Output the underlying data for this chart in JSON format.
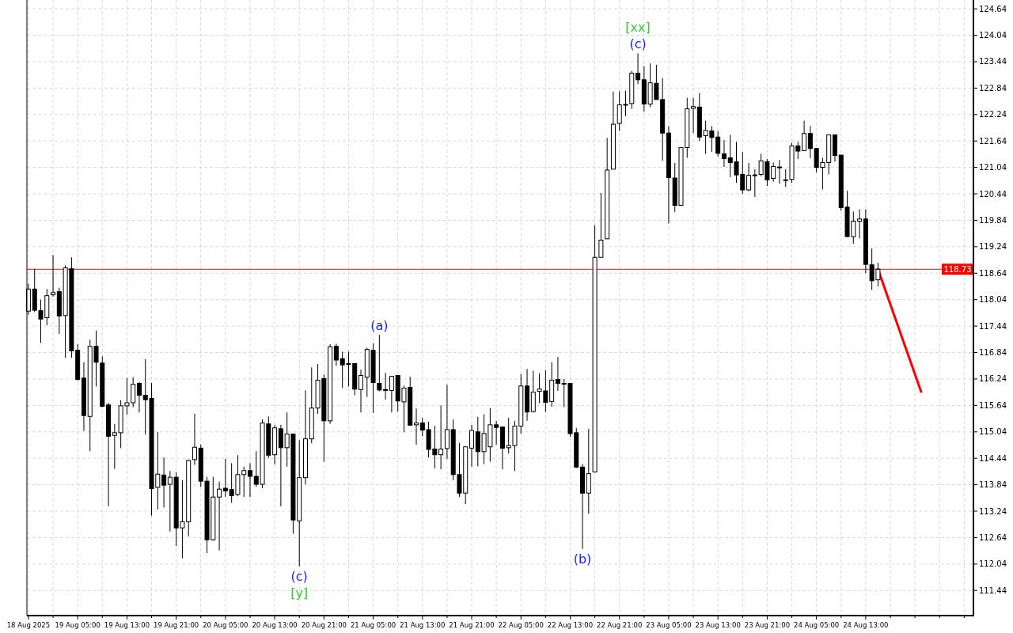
{
  "chart_data": {
    "type": "candlestick",
    "x": [
      "2025-08-18T21:00",
      "2025-08-18T22:00",
      "2025-08-18T23:00",
      "2025-08-19T00:00",
      "2025-08-19T01:00",
      "2025-08-19T02:00",
      "2025-08-19T03:00",
      "2025-08-19T04:00",
      "2025-08-19T05:00",
      "2025-08-19T06:00",
      "2025-08-19T07:00",
      "2025-08-19T08:00",
      "2025-08-19T09:00",
      "2025-08-19T10:00",
      "2025-08-19T11:00",
      "2025-08-19T12:00",
      "2025-08-19T13:00",
      "2025-08-19T14:00",
      "2025-08-19T15:00",
      "2025-08-19T16:00",
      "2025-08-19T17:00",
      "2025-08-19T18:00",
      "2025-08-19T19:00",
      "2025-08-19T20:00",
      "2025-08-19T21:00",
      "2025-08-19T22:00",
      "2025-08-19T23:00",
      "2025-08-20T00:00",
      "2025-08-20T01:00",
      "2025-08-20T02:00",
      "2025-08-20T03:00",
      "2025-08-20T04:00",
      "2025-08-20T05:00",
      "2025-08-20T06:00",
      "2025-08-20T07:00",
      "2025-08-20T08:00",
      "2025-08-20T09:00",
      "2025-08-20T10:00",
      "2025-08-20T11:00",
      "2025-08-20T12:00",
      "2025-08-20T13:00",
      "2025-08-20T14:00",
      "2025-08-20T15:00",
      "2025-08-20T16:00",
      "2025-08-20T17:00",
      "2025-08-20T18:00",
      "2025-08-20T19:00",
      "2025-08-20T20:00",
      "2025-08-20T21:00",
      "2025-08-20T22:00",
      "2025-08-20T23:00",
      "2025-08-21T00:00",
      "2025-08-21T01:00",
      "2025-08-21T02:00",
      "2025-08-21T03:00",
      "2025-08-21T04:00",
      "2025-08-21T05:00",
      "2025-08-21T06:00",
      "2025-08-21T07:00",
      "2025-08-21T08:00",
      "2025-08-21T09:00",
      "2025-08-21T10:00",
      "2025-08-21T11:00",
      "2025-08-21T12:00",
      "2025-08-21T13:00",
      "2025-08-21T14:00",
      "2025-08-21T15:00",
      "2025-08-21T16:00",
      "2025-08-21T17:00",
      "2025-08-21T18:00",
      "2025-08-21T19:00",
      "2025-08-21T20:00",
      "2025-08-21T21:00",
      "2025-08-21T22:00",
      "2025-08-21T23:00",
      "2025-08-22T00:00",
      "2025-08-22T01:00",
      "2025-08-22T02:00",
      "2025-08-22T03:00",
      "2025-08-22T04:00",
      "2025-08-22T05:00",
      "2025-08-22T06:00",
      "2025-08-22T07:00",
      "2025-08-22T08:00",
      "2025-08-22T09:00",
      "2025-08-22T10:00",
      "2025-08-22T11:00",
      "2025-08-22T12:00",
      "2025-08-22T13:00",
      "2025-08-22T14:00",
      "2025-08-22T15:00",
      "2025-08-22T16:00",
      "2025-08-22T17:00",
      "2025-08-22T18:00",
      "2025-08-22T19:00",
      "2025-08-22T20:00",
      "2025-08-22T21:00",
      "2025-08-22T22:00",
      "2025-08-22T23:00",
      "2025-08-23T00:00",
      "2025-08-23T01:00",
      "2025-08-23T02:00",
      "2025-08-23T03:00",
      "2025-08-23T04:00",
      "2025-08-23T05:00",
      "2025-08-23T06:00",
      "2025-08-23T07:00",
      "2025-08-23T08:00",
      "2025-08-23T09:00",
      "2025-08-23T10:00",
      "2025-08-23T11:00",
      "2025-08-23T12:00",
      "2025-08-23T13:00",
      "2025-08-23T14:00",
      "2025-08-23T15:00",
      "2025-08-23T16:00",
      "2025-08-23T17:00",
      "2025-08-23T18:00",
      "2025-08-23T19:00",
      "2025-08-23T20:00",
      "2025-08-23T21:00",
      "2025-08-23T22:00",
      "2025-08-23T23:00",
      "2025-08-24T00:00",
      "2025-08-24T01:00",
      "2025-08-24T02:00",
      "2025-08-24T03:00",
      "2025-08-24T04:00",
      "2025-08-24T05:00",
      "2025-08-24T06:00",
      "2025-08-24T07:00",
      "2025-08-24T08:00",
      "2025-08-24T09:00",
      "2025-08-24T10:00",
      "2025-08-24T11:00",
      "2025-08-24T12:00",
      "2025-08-24T13:00",
      "2025-08-24T14:00",
      "2025-08-24T15:00"
    ],
    "ohlc": [
      [
        117.78,
        118.4,
        117.7,
        118.28
      ],
      [
        118.28,
        118.74,
        117.76,
        117.8
      ],
      [
        117.79,
        118.04,
        117.06,
        117.6
      ],
      [
        117.63,
        118.28,
        117.46,
        118.13
      ],
      [
        118.15,
        119.05,
        118.11,
        118.2
      ],
      [
        118.22,
        118.31,
        117.26,
        117.67
      ],
      [
        117.68,
        118.82,
        116.72,
        118.76
      ],
      [
        118.74,
        119.0,
        116.72,
        116.88
      ],
      [
        116.89,
        117.03,
        116.2,
        116.23
      ],
      [
        116.26,
        116.62,
        115.06,
        115.41
      ],
      [
        115.39,
        117.13,
        114.6,
        116.98
      ],
      [
        116.98,
        117.34,
        116.07,
        116.62
      ],
      [
        116.6,
        116.75,
        115.6,
        115.62
      ],
      [
        115.65,
        115.7,
        113.35,
        114.94
      ],
      [
        114.96,
        115.22,
        114.2,
        115.02
      ],
      [
        115.02,
        115.76,
        114.67,
        115.63
      ],
      [
        115.63,
        116.26,
        115.43,
        115.7
      ],
      [
        115.7,
        116.28,
        115.6,
        116.12
      ],
      [
        116.14,
        116.17,
        115.48,
        115.87
      ],
      [
        115.87,
        116.69,
        114.98,
        115.77
      ],
      [
        115.8,
        116.15,
        113.14,
        113.75
      ],
      [
        113.78,
        115.04,
        113.28,
        114.08
      ],
      [
        114.06,
        114.46,
        113.32,
        113.83
      ],
      [
        113.85,
        114.15,
        112.78,
        114.01
      ],
      [
        114.01,
        114.12,
        112.45,
        112.86
      ],
      [
        112.86,
        113.94,
        112.17,
        113.0
      ],
      [
        113.0,
        114.41,
        112.67,
        114.39
      ],
      [
        114.41,
        115.45,
        114.29,
        114.69
      ],
      [
        114.67,
        114.75,
        113.79,
        113.92
      ],
      [
        113.92,
        114.02,
        112.29,
        112.59
      ],
      [
        112.59,
        114.02,
        112.57,
        113.56
      ],
      [
        113.56,
        113.91,
        112.35,
        113.74
      ],
      [
        113.76,
        114.43,
        113.56,
        113.7
      ],
      [
        113.73,
        114.33,
        113.43,
        113.59
      ],
      [
        113.62,
        114.51,
        113.58,
        114.07
      ],
      [
        114.07,
        114.25,
        113.56,
        114.16
      ],
      [
        114.16,
        114.33,
        113.56,
        114.03
      ],
      [
        114.03,
        114.6,
        113.79,
        113.85
      ],
      [
        113.85,
        115.32,
        113.76,
        115.24
      ],
      [
        115.22,
        115.39,
        114.45,
        114.51
      ],
      [
        114.52,
        115.2,
        114.3,
        115.13
      ],
      [
        115.11,
        115.2,
        113.35,
        114.68
      ],
      [
        114.68,
        115.48,
        114.25,
        114.99
      ],
      [
        114.99,
        114.99,
        112.73,
        113.04
      ],
      [
        113.02,
        114.85,
        111.99,
        114.0
      ],
      [
        114.0,
        115.98,
        113.85,
        114.88
      ],
      [
        114.88,
        116.5,
        114.78,
        115.58
      ],
      [
        115.58,
        116.58,
        115.45,
        116.21
      ],
      [
        116.25,
        116.34,
        114.36,
        115.29
      ],
      [
        115.29,
        117.03,
        115.22,
        116.97
      ],
      [
        116.98,
        117.04,
        116.54,
        116.67
      ],
      [
        116.7,
        116.86,
        116.04,
        116.56
      ],
      [
        116.59,
        116.86,
        116.07,
        116.58
      ],
      [
        116.59,
        116.6,
        115.87,
        116.01
      ],
      [
        116.0,
        116.45,
        115.48,
        116.32
      ],
      [
        116.28,
        116.95,
        115.83,
        116.91
      ],
      [
        116.89,
        117.05,
        115.47,
        116.16
      ],
      [
        116.14,
        117.24,
        115.96,
        115.99
      ],
      [
        116.0,
        116.38,
        115.77,
        115.98
      ],
      [
        115.98,
        116.3,
        115.48,
        116.3
      ],
      [
        116.32,
        116.32,
        115.5,
        115.74
      ],
      [
        115.72,
        116.09,
        115.03,
        116.03
      ],
      [
        116.05,
        116.29,
        115.18,
        115.19
      ],
      [
        115.2,
        115.57,
        114.75,
        115.24
      ],
      [
        115.24,
        115.36,
        114.94,
        115.08
      ],
      [
        115.09,
        115.27,
        114.46,
        114.64
      ],
      [
        114.65,
        115.18,
        114.21,
        114.52
      ],
      [
        114.52,
        115.64,
        114.19,
        114.65
      ],
      [
        114.66,
        116.11,
        114.42,
        115.09
      ],
      [
        115.09,
        115.32,
        113.94,
        114.07
      ],
      [
        114.07,
        114.79,
        113.56,
        113.65
      ],
      [
        113.65,
        114.7,
        113.4,
        114.7
      ],
      [
        114.67,
        115.2,
        114.25,
        115.07
      ],
      [
        115.04,
        115.38,
        114.26,
        114.59
      ],
      [
        114.59,
        115.44,
        114.31,
        115.0
      ],
      [
        114.7,
        115.58,
        114.36,
        115.2
      ],
      [
        115.2,
        115.29,
        114.75,
        115.14
      ],
      [
        115.15,
        115.15,
        114.19,
        114.67
      ],
      [
        114.68,
        115.36,
        114.55,
        114.73
      ],
      [
        114.73,
        115.29,
        114.15,
        115.17
      ],
      [
        115.17,
        116.35,
        115.0,
        116.08
      ],
      [
        116.08,
        116.47,
        115.29,
        115.49
      ],
      [
        115.5,
        116.43,
        115.48,
        115.94
      ],
      [
        115.96,
        116.37,
        115.69,
        116.01
      ],
      [
        115.97,
        116.44,
        115.49,
        115.71
      ],
      [
        115.73,
        116.62,
        115.61,
        116.21
      ],
      [
        116.23,
        116.74,
        115.97,
        116.14
      ],
      [
        116.14,
        116.24,
        115.6,
        116.12
      ],
      [
        116.14,
        116.14,
        114.93,
        115.0
      ],
      [
        115.02,
        115.13,
        114.22,
        114.24
      ],
      [
        114.24,
        114.31,
        112.38,
        113.65
      ],
      [
        113.65,
        115.11,
        113.18,
        114.09
      ],
      [
        114.13,
        119.73,
        114.13,
        119.0
      ],
      [
        119.0,
        120.46,
        119.0,
        119.39
      ],
      [
        119.42,
        121.71,
        119.42,
        120.98
      ],
      [
        121.0,
        122.76,
        121.0,
        122.02
      ],
      [
        122.04,
        122.77,
        121.87,
        122.46
      ],
      [
        122.46,
        122.78,
        122.2,
        122.47
      ],
      [
        122.49,
        123.23,
        122.37,
        123.18
      ],
      [
        123.18,
        123.63,
        122.93,
        123.03
      ],
      [
        123.03,
        123.34,
        122.31,
        122.48
      ],
      [
        122.48,
        123.4,
        122.41,
        122.96
      ],
      [
        122.95,
        123.37,
        122.58,
        122.58
      ],
      [
        122.58,
        123.07,
        121.19,
        121.82
      ],
      [
        121.82,
        121.98,
        119.77,
        120.81
      ],
      [
        120.8,
        121.14,
        120.03,
        120.18
      ],
      [
        120.18,
        121.49,
        120.18,
        121.49
      ],
      [
        121.49,
        122.62,
        121.26,
        122.37
      ],
      [
        122.38,
        122.62,
        121.82,
        122.42
      ],
      [
        122.41,
        122.73,
        121.64,
        121.73
      ],
      [
        121.76,
        122.1,
        121.35,
        121.88
      ],
      [
        121.87,
        121.98,
        121.39,
        121.72
      ],
      [
        121.73,
        121.87,
        121.29,
        121.36
      ],
      [
        121.35,
        121.66,
        121.05,
        121.24
      ],
      [
        121.26,
        121.78,
        120.82,
        121.15
      ],
      [
        121.17,
        121.62,
        120.69,
        120.87
      ],
      [
        120.88,
        121.39,
        120.44,
        120.53
      ],
      [
        120.53,
        121.14,
        120.5,
        120.86
      ],
      [
        120.87,
        121.0,
        120.37,
        120.87
      ],
      [
        120.88,
        121.35,
        120.84,
        121.19
      ],
      [
        121.17,
        121.23,
        120.62,
        120.76
      ],
      [
        120.79,
        121.15,
        120.72,
        121.06
      ],
      [
        121.05,
        121.21,
        120.67,
        121.05
      ],
      [
        120.76,
        121.0,
        120.6,
        120.76
      ],
      [
        120.77,
        121.6,
        120.69,
        121.53
      ],
      [
        121.53,
        121.62,
        121.23,
        121.41
      ],
      [
        121.42,
        122.1,
        121.42,
        121.81
      ],
      [
        121.81,
        121.98,
        121.25,
        121.47
      ],
      [
        121.47,
        121.47,
        120.93,
        121.04
      ],
      [
        121.04,
        121.26,
        120.54,
        121.15
      ],
      [
        121.15,
        121.78,
        120.88,
        121.78
      ],
      [
        121.78,
        121.78,
        121.17,
        121.31
      ],
      [
        121.32,
        121.32,
        120.06,
        120.13
      ],
      [
        120.14,
        120.51,
        119.46,
        119.47
      ],
      [
        119.47,
        120.04,
        119.31,
        119.82
      ],
      [
        119.82,
        120.09,
        119.43,
        119.87
      ],
      [
        119.87,
        120.09,
        118.64,
        118.84
      ],
      [
        118.83,
        119.2,
        118.26,
        118.47
      ],
      [
        118.49,
        118.88,
        118.34,
        118.73
      ]
    ],
    "series": [
      {
        "type": "line",
        "color": "#ff0000",
        "x": [
          "2025-08-24T15:00",
          "2025-08-24T22:00"
        ],
        "values": [
          118.73,
          115.95
        ]
      }
    ],
    "xlim": [
      "2025-08-18T20:45",
      "2025-08-25T06:30"
    ],
    "ylim": [
      110.87,
      124.84
    ],
    "xticks": [
      {
        "value": "2025-08-18T21:00",
        "label": "18 Aug 2025"
      },
      {
        "value": "2025-08-19T01:00",
        "label": null
      },
      {
        "value": "2025-08-19T05:00",
        "label": "19 Aug 05:00"
      },
      {
        "value": "2025-08-19T09:00",
        "label": null
      },
      {
        "value": "2025-08-19T13:00",
        "label": "19 Aug 13:00"
      },
      {
        "value": "2025-08-19T17:00",
        "label": null
      },
      {
        "value": "2025-08-19T21:00",
        "label": "19 Aug 21:00"
      },
      {
        "value": "2025-08-20T01:00",
        "label": null
      },
      {
        "value": "2025-08-20T05:00",
        "label": "20 Aug 05:00"
      },
      {
        "value": "2025-08-20T09:00",
        "label": null
      },
      {
        "value": "2025-08-20T13:00",
        "label": "20 Aug 13:00"
      },
      {
        "value": "2025-08-20T17:00",
        "label": null
      },
      {
        "value": "2025-08-20T21:00",
        "label": "20 Aug 21:00"
      },
      {
        "value": "2025-08-21T01:00",
        "label": null
      },
      {
        "value": "2025-08-21T05:00",
        "label": "21 Aug 05:00"
      },
      {
        "value": "2025-08-21T09:00",
        "label": null
      },
      {
        "value": "2025-08-21T13:00",
        "label": "21 Aug 13:00"
      },
      {
        "value": "2025-08-21T17:00",
        "label": null
      },
      {
        "value": "2025-08-21T21:00",
        "label": "21 Aug 21:00"
      },
      {
        "value": "2025-08-22T01:00",
        "label": null
      },
      {
        "value": "2025-08-22T05:00",
        "label": "22 Aug 05:00"
      },
      {
        "value": "2025-08-22T09:00",
        "label": null
      },
      {
        "value": "2025-08-22T13:00",
        "label": "22 Aug 13:00"
      },
      {
        "value": "2025-08-22T17:00",
        "label": null
      },
      {
        "value": "2025-08-22T21:00",
        "label": "22 Aug 21:00"
      },
      {
        "value": "2025-08-23T01:00",
        "label": null
      },
      {
        "value": "2025-08-23T05:00",
        "label": "23 Aug 05:00"
      },
      {
        "value": "2025-08-23T09:00",
        "label": null
      },
      {
        "value": "2025-08-23T13:00",
        "label": "23 Aug 13:00"
      },
      {
        "value": "2025-08-23T17:00",
        "label": null
      },
      {
        "value": "2025-08-23T21:00",
        "label": "23 Aug 21:00"
      },
      {
        "value": "2025-08-24T01:00",
        "label": null
      },
      {
        "value": "2025-08-24T05:00",
        "label": "24 Aug 05:00"
      },
      {
        "value": "2025-08-24T09:00",
        "label": null
      },
      {
        "value": "2025-08-24T13:00",
        "label": "24 Aug 13:00"
      },
      {
        "value": "2025-08-24T17:00",
        "label": null
      },
      {
        "value": "2025-08-24T21:00",
        "label": null
      },
      {
        "value": "2025-08-25T01:00",
        "label": null
      },
      {
        "value": "2025-08-25T05:00",
        "label": null
      }
    ],
    "yticks": [
      111.44,
      112.04,
      112.64,
      113.24,
      113.84,
      114.44,
      115.04,
      115.64,
      116.24,
      116.84,
      117.44,
      118.04,
      118.64,
      119.24,
      119.84,
      120.44,
      121.04,
      121.64,
      122.24,
      122.84,
      123.44,
      124.04,
      124.64
    ],
    "grid": true,
    "ref_lines": [
      {
        "axis": "y",
        "value": 118.73,
        "label": "118.73",
        "color": "#ff0000"
      }
    ],
    "annotations": [
      {
        "text": "(c)",
        "x": "2025-08-20T17:00",
        "y": 111.99
      },
      {
        "text": "[y]",
        "x": "2025-08-20T17:00",
        "y": 111.99
      },
      {
        "text": "(a)",
        "x": "2025-08-21T06:00",
        "y": 117.24
      },
      {
        "text": "(b)",
        "x": "2025-08-22T15:00",
        "y": 112.38
      },
      {
        "text": "(c)",
        "x": "2025-08-23T00:00",
        "y": 123.63
      },
      {
        "text": "[xx]",
        "x": "2025-08-23T00:00",
        "y": 123.63
      }
    ]
  }
}
